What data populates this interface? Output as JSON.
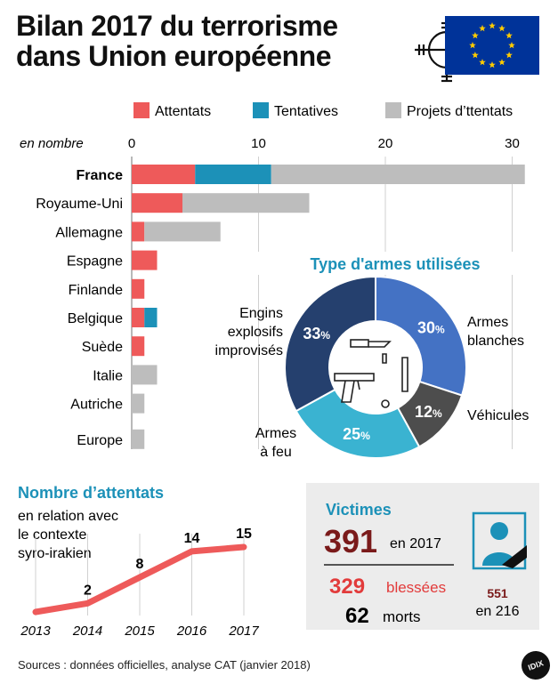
{
  "title": "Bilan 2017 du terrorisme dans Union européenne",
  "icon_names": [
    "target-crosshair-icon",
    "eu-flag-icon",
    "weapons-icon",
    "mourning-portrait-icon"
  ],
  "colors": {
    "attentats": "#ee5a5a",
    "tentatives": "#1c91b8",
    "projets": "#bdbdbd",
    "donut_blue": "#4472c4",
    "donut_grey": "#4d4d4d",
    "donut_cyan": "#3ab3d1",
    "donut_navy": "#25406e",
    "line_red": "#ee5a5a",
    "victims_dark": "#7a1a1a",
    "victims_red": "#e23b3b",
    "donut_title": "#1c91b8",
    "eu_blue": "#003399",
    "eu_star": "#ffcc00"
  },
  "chart_data": [
    {
      "type": "bar",
      "stacked": true,
      "orientation": "horizontal",
      "unit_label": "en nombre",
      "categories": [
        "France",
        "Royaume-Uni",
        "Allemagne",
        "Espagne",
        "Finlande",
        "Belgique",
        "Suède",
        "Italie",
        "Autriche",
        "Europe"
      ],
      "highlight_category": "France",
      "series": [
        {
          "name": "Attentats",
          "values": [
            5,
            4,
            1,
            2,
            1,
            1,
            1,
            0,
            0,
            0
          ]
        },
        {
          "name": "Tentatives",
          "values": [
            6,
            0,
            0,
            0,
            0,
            1,
            0,
            0,
            0,
            0
          ]
        },
        {
          "name": "Projets d’ttentats",
          "values": [
            20,
            10,
            6,
            0,
            0,
            0,
            0,
            2,
            1,
            1
          ]
        }
      ],
      "xlim": [
        0,
        31
      ],
      "xticks": [
        0,
        10,
        20,
        30
      ],
      "grid": true,
      "legend": "top"
    },
    {
      "type": "pie",
      "donut": true,
      "title": "Type d'armes utilisées",
      "slices": [
        {
          "label": "Armes blanches",
          "value": 30,
          "display": "30%"
        },
        {
          "label": "Véhicules",
          "value": 12,
          "display": "12%"
        },
        {
          "label": "Armes à feu",
          "value": 25,
          "display": "25%"
        },
        {
          "label": "Engins explosifs improvisés",
          "value": 33,
          "display": "33%"
        }
      ]
    },
    {
      "type": "line",
      "title": "Nombre d’attentats",
      "subtitle": "en relation avec le contexte syro-irakien",
      "x": [
        "2013",
        "2014",
        "2015",
        "2016",
        "2017"
      ],
      "values": [
        0,
        2,
        8,
        14,
        15
      ],
      "labels": [
        "",
        "2",
        "8",
        "14",
        "15"
      ],
      "ylim": [
        0,
        16
      ]
    }
  ],
  "victims": {
    "title": "Victimes",
    "total": "391",
    "total_suffix": "en 2017",
    "injured": "329",
    "injured_label": "blessées",
    "dead": "62",
    "dead_label": "morts",
    "compare_value": "551",
    "compare_label": "en 216"
  },
  "source": "Sources : données officielles, analyse CAT (janvier 2018)",
  "logo": "IDIX"
}
